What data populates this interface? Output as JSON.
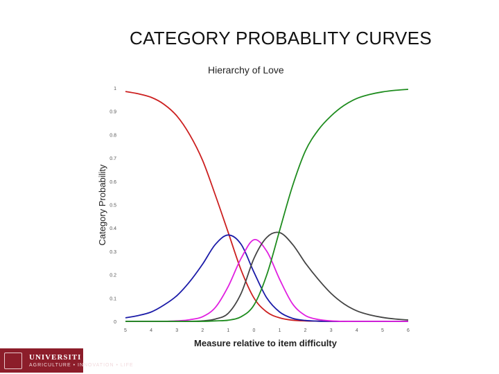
{
  "slide": {
    "title": "CATEGORY PROBABLITY CURVES"
  },
  "footer": {
    "name": "UNIVERSITI PU",
    "tagline": "AGRICULTURE • INNOVATION • LIFE"
  },
  "chart_data": {
    "type": "line",
    "title": "Hierarchy of Love",
    "xlabel": "Measure relative to item difficulty",
    "ylabel": "Category Probability",
    "xlim": [
      -5,
      6
    ],
    "ylim": [
      0,
      1
    ],
    "xticks": [
      "5",
      "4",
      "3",
      "2",
      "1",
      "0",
      "1",
      "2",
      "3",
      "4",
      "5",
      "6"
    ],
    "yticks": [
      "0",
      "0.1",
      "0.2",
      "0.3",
      "0.4",
      "0.5",
      "0.6",
      "0.7",
      "0.8",
      "0.9",
      "1"
    ],
    "grid": false,
    "series": [
      {
        "color": "#cc1f1f",
        "x": [
          -5,
          -4.5,
          -4,
          -3.5,
          -3,
          -2.5,
          -2,
          -1.5,
          -1,
          -0.5,
          0,
          0.5,
          1,
          1.5,
          2,
          2.5,
          3,
          3.5,
          4,
          4.5,
          5,
          5.5,
          6
        ],
        "y": [
          0.985,
          0.975,
          0.96,
          0.93,
          0.88,
          0.8,
          0.69,
          0.54,
          0.38,
          0.22,
          0.1,
          0.04,
          0.015,
          0.005,
          0.002,
          0.001,
          0,
          0,
          0,
          0,
          0,
          0,
          0
        ]
      },
      {
        "color": "#1b1ba8",
        "x": [
          -5,
          -4.5,
          -4,
          -3.5,
          -3,
          -2.5,
          -2,
          -1.5,
          -1,
          -0.5,
          0,
          0.5,
          1,
          1.5,
          2,
          2.5,
          3,
          3.5,
          4,
          4.5,
          5,
          5.5,
          6
        ],
        "y": [
          0.015,
          0.025,
          0.04,
          0.07,
          0.11,
          0.17,
          0.245,
          0.33,
          0.37,
          0.33,
          0.21,
          0.1,
          0.04,
          0.013,
          0.004,
          0.001,
          0,
          0,
          0,
          0,
          0,
          0,
          0
        ]
      },
      {
        "color": "#e020e0",
        "x": [
          -5,
          -4.5,
          -4,
          -3.5,
          -3,
          -2.5,
          -2,
          -1.5,
          -1,
          -0.5,
          0,
          0.5,
          1,
          1.5,
          2,
          2.5,
          3,
          3.5,
          4,
          4.5,
          5,
          5.5,
          6
        ],
        "y": [
          0,
          0,
          0,
          0,
          0.002,
          0.007,
          0.02,
          0.06,
          0.15,
          0.27,
          0.35,
          0.3,
          0.18,
          0.075,
          0.025,
          0.008,
          0.002,
          0,
          0,
          0,
          0,
          0,
          0
        ]
      },
      {
        "color": "#444444",
        "x": [
          -5,
          -4.5,
          -4,
          -3.5,
          -3,
          -2.5,
          -2,
          -1.5,
          -1,
          -0.5,
          0,
          0.5,
          1,
          1.5,
          2,
          2.5,
          3,
          3.5,
          4,
          4.5,
          5,
          5.5,
          6
        ],
        "y": [
          0,
          0,
          0,
          0,
          0,
          0,
          0.002,
          0.01,
          0.035,
          0.12,
          0.27,
          0.36,
          0.38,
          0.33,
          0.25,
          0.18,
          0.12,
          0.075,
          0.045,
          0.028,
          0.017,
          0.01,
          0.006
        ]
      },
      {
        "color": "#1e8c1e",
        "x": [
          -5,
          -4.5,
          -4,
          -3.5,
          -3,
          -2.5,
          -2,
          -1.5,
          -1,
          -0.5,
          0,
          0.5,
          1,
          1.5,
          2,
          2.5,
          3,
          3.5,
          4,
          4.5,
          5,
          5.5,
          6
        ],
        "y": [
          0,
          0,
          0,
          0,
          0,
          0,
          0,
          0.002,
          0.005,
          0.02,
          0.07,
          0.2,
          0.39,
          0.58,
          0.73,
          0.82,
          0.88,
          0.925,
          0.955,
          0.972,
          0.983,
          0.99,
          0.994
        ]
      }
    ]
  }
}
